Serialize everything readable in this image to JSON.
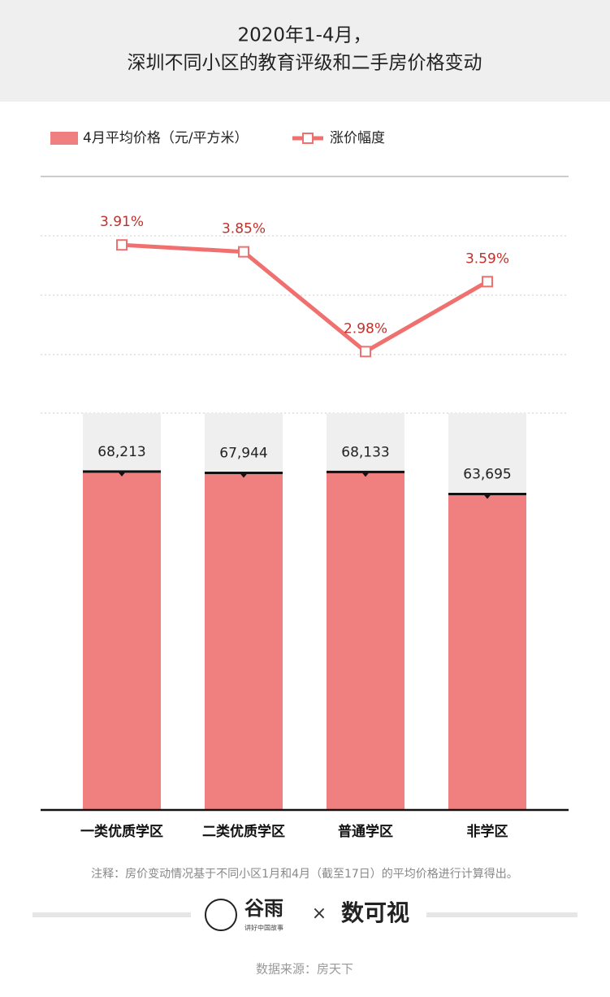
{
  "chart_data": {
    "type": "bar_line",
    "title": "2020年1-4月，",
    "subtitle": "深圳不同小区的教育评级和二手房价格变动",
    "categories": [
      "一类优质学区",
      "二类优质学区",
      "普通学区",
      "非学区"
    ],
    "series": [
      {
        "name": "4月平均价格（元/平方米）",
        "type": "bar",
        "color": "#f08080",
        "values": [
          68213,
          67944,
          68133,
          63695
        ],
        "value_labels": [
          "68,213",
          "67,944",
          "68,133",
          "63,695"
        ]
      },
      {
        "name": "涨价幅度",
        "type": "line",
        "axis": "y2",
        "color": "#f07070",
        "values": [
          3.91,
          3.85,
          2.98,
          3.59
        ],
        "value_labels": [
          "3.91%",
          "3.85%",
          "2.98%",
          "3.59%"
        ]
      }
    ],
    "ylim": [
      0,
      80000
    ],
    "y2lim": [
      2.5,
      4.5
    ],
    "note": "注释：房价变动情况基于不同小区1月和4月（截至17日）的平均价格进行计算得出。",
    "source": "数据来源：房天下"
  },
  "branding": {
    "left": "谷雨",
    "left_sub": "讲好中国故事",
    "cross": "×",
    "right": "数可视"
  }
}
